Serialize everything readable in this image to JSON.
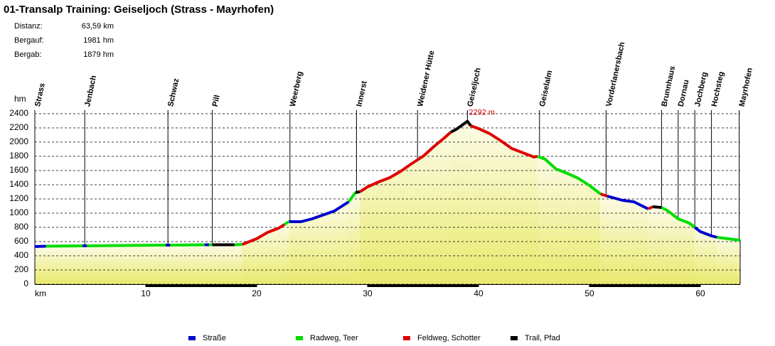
{
  "chart_data": {
    "type": "elevation-profile",
    "title": "01-Transalp Training: Geiseljoch (Strass - Mayrhofen)",
    "stats": [
      {
        "label": "Distanz:",
        "value": "63,59 km"
      },
      {
        "label": "Bergauf:",
        "value": "1981 hm"
      },
      {
        "label": "Bergab:",
        "value": "1879 hm"
      }
    ],
    "y_label": "hm",
    "x_label": "km",
    "xlim": [
      0,
      63.59
    ],
    "xticks": [
      10,
      20,
      30,
      40,
      50,
      60
    ],
    "ylim": [
      0,
      2400
    ],
    "yticks": [
      0,
      200,
      400,
      600,
      800,
      1000,
      1200,
      1400,
      1600,
      1800,
      2000,
      2200,
      2400
    ],
    "grid": true,
    "waypoints": [
      {
        "name": "Strass",
        "km": 0
      },
      {
        "name": "Jenbach",
        "km": 4.5
      },
      {
        "name": "Schwaz",
        "km": 12
      },
      {
        "name": "Pill",
        "km": 16
      },
      {
        "name": "Weerberg",
        "km": 23
      },
      {
        "name": "Innerst",
        "km": 29
      },
      {
        "name": "Weidener Hütte",
        "km": 34.5
      },
      {
        "name": "Geiseljoch",
        "km": 39
      },
      {
        "name": "Geiselalm",
        "km": 45.5
      },
      {
        "name": "Vorderlanersbach",
        "km": 51.5
      },
      {
        "name": "Brunnhaus",
        "km": 56.5
      },
      {
        "name": "Dornau",
        "km": 58
      },
      {
        "name": "Jochberg",
        "km": 59.5
      },
      {
        "name": "Hochsteg",
        "km": 61
      },
      {
        "name": "Mayrhofen",
        "km": 63.5
      }
    ],
    "peak": {
      "text": "2292 m",
      "x": 39,
      "y": 2292
    },
    "series": [
      {
        "name": "Straße",
        "color": "#0000cc",
        "x": [
          0,
          1,
          null,
          4.3,
          4.7,
          null,
          11.8,
          12.2,
          null,
          15.3,
          15.7,
          null,
          22.9,
          24,
          25,
          26,
          27,
          28.3,
          null,
          51.6,
          53,
          54,
          55.3,
          null,
          59.5,
          60,
          61,
          61.5
        ],
        "values": [
          530,
          535,
          null,
          540,
          540,
          null,
          550,
          550,
          null,
          555,
          555,
          null,
          880,
          880,
          920,
          975,
          1030,
          1160,
          null,
          1240,
          1180,
          1160,
          1060,
          null,
          800,
          740,
          680,
          660
        ]
      },
      {
        "name": "Radweg, Teer",
        "color": "#00dd00",
        "x": [
          1,
          4.3,
          null,
          4.7,
          8,
          11.8,
          null,
          12.2,
          15.3,
          null,
          15.7,
          16,
          null,
          18,
          18.7,
          null,
          22.5,
          22.9,
          null,
          28.3,
          28.9,
          null,
          45.3,
          46,
          47,
          48,
          49,
          50,
          51,
          null,
          56.5,
          57,
          58,
          59,
          59.5,
          null,
          61.5,
          62,
          63,
          63.59
        ],
        "values": [
          535,
          540,
          null,
          540,
          545,
          550,
          null,
          550,
          555,
          null,
          555,
          555,
          null,
          555,
          560,
          null,
          840,
          880,
          null,
          1160,
          1290,
          null,
          1800,
          1760,
          1620,
          1560,
          1490,
          1390,
          1270,
          null,
          1080,
          1040,
          920,
          860,
          800,
          null,
          660,
          650,
          630,
          620
        ]
      },
      {
        "name": "Feldweg, Schotter",
        "color": "#dd0000",
        "x": [
          18.7,
          20,
          21,
          22,
          22.5,
          null,
          29.3,
          30,
          31,
          32,
          33,
          34,
          35,
          36,
          37,
          37.5,
          null,
          39.3,
          40,
          41,
          42,
          43,
          44,
          45,
          45.3,
          null,
          51,
          51.6,
          null,
          55.3,
          55.7
        ],
        "values": [
          560,
          640,
          730,
          790,
          840,
          null,
          1300,
          1370,
          1440,
          1500,
          1590,
          1700,
          1800,
          1940,
          2070,
          2140,
          null,
          2230,
          2190,
          2120,
          2020,
          1910,
          1850,
          1790,
          1800,
          null,
          1270,
          1240,
          null,
          1060,
          1090
        ]
      },
      {
        "name": "Trail, Pfad",
        "color": "#000000",
        "x": [
          16,
          18,
          null,
          28.9,
          29.3,
          null,
          37.5,
          38,
          39,
          39.3,
          null,
          55.7,
          56.5
        ],
        "values": [
          555,
          555,
          null,
          1290,
          1300,
          null,
          2140,
          2180,
          2292,
          2230,
          null,
          1090,
          1080
        ]
      }
    ]
  }
}
